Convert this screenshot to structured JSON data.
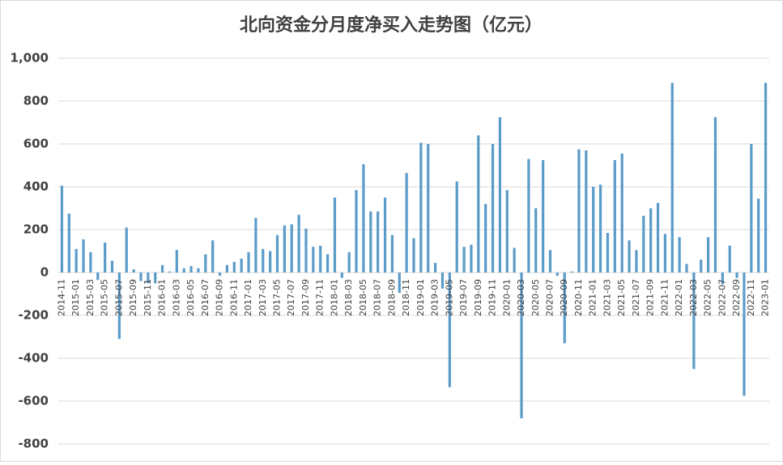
{
  "chart_data": {
    "type": "bar",
    "title": "北向资金分月度净买入走势图（亿元）",
    "categories": [
      "2014-11",
      null,
      "2015-01",
      null,
      "2015-03",
      null,
      "2015-05",
      null,
      "2015-07",
      null,
      "2015-09",
      null,
      "2015-11",
      null,
      "2016-01",
      null,
      "2016-03",
      null,
      "2016-05",
      null,
      "2016-07",
      null,
      "2016-09",
      null,
      "2016-11",
      null,
      "2017-01",
      null,
      "2017-03",
      null,
      "2017-05",
      null,
      "2017-07",
      null,
      "2017-09",
      null,
      "2017-11",
      null,
      "2018-01",
      null,
      "2018-03",
      null,
      "2018-05",
      null,
      "2018-07",
      null,
      "2018-09",
      null,
      "2018-11",
      null,
      "2019-01",
      null,
      "2019-03",
      null,
      "2019-05",
      null,
      "2019-07",
      null,
      "2019-09",
      null,
      "2019-11",
      null,
      "2020-01",
      null,
      "2020-03",
      null,
      "2020-05",
      null,
      "2020-07",
      null,
      "2020-09",
      null,
      "2020-11",
      null,
      "2021-01",
      null,
      "2021-03",
      null,
      "2021-05",
      null,
      "2021-07",
      null,
      "2021-09",
      null,
      "2021-11",
      null,
      "2022-01",
      null,
      "2022-03",
      null,
      "2022-05",
      null,
      "2022-07",
      null,
      "2022-09",
      null,
      "2022-11",
      null,
      "2023-01"
    ],
    "values": [
      405,
      275,
      110,
      155,
      95,
      -35,
      140,
      55,
      -310,
      210,
      15,
      -40,
      -50,
      -50,
      35,
      5,
      105,
      20,
      30,
      20,
      85,
      150,
      -15,
      35,
      50,
      65,
      95,
      255,
      110,
      100,
      175,
      220,
      225,
      270,
      205,
      120,
      125,
      85,
      350,
      -25,
      95,
      385,
      505,
      285,
      285,
      350,
      175,
      -95,
      465,
      160,
      605,
      600,
      45,
      -75,
      -535,
      425,
      120,
      130,
      640,
      320,
      600,
      725,
      385,
      115,
      -680,
      530,
      300,
      525,
      105,
      -15,
      -330,
      5,
      575,
      570,
      400,
      410,
      185,
      525,
      555,
      150,
      105,
      265,
      300,
      325,
      180,
      885,
      165,
      40,
      -450,
      60,
      165,
      725,
      -55,
      125,
      -25,
      -575,
      600,
      345,
      885
    ],
    "color": "#5b9bc9",
    "ylim": [
      -800,
      1000
    ],
    "yticks": [
      -800,
      -600,
      -400,
      -200,
      0,
      200,
      400,
      600,
      800,
      {
        "value": 1000,
        "label": "1,000"
      }
    ],
    "grid": true
  }
}
